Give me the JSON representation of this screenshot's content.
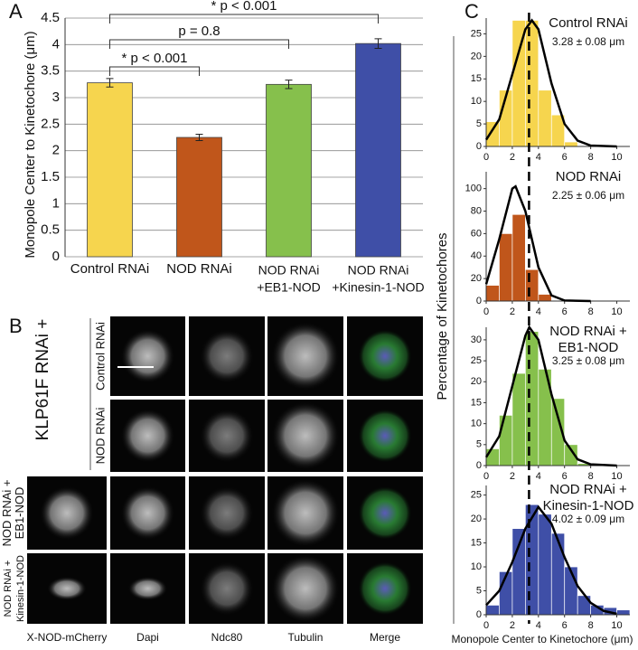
{
  "panel_labels": [
    "A",
    "B",
    "C"
  ],
  "chart_data": [
    {
      "type": "bar",
      "y_label": "Monopole Center to Kinetochore (μm)",
      "categories": [
        "Control RNAi",
        "NOD RNAi",
        "NOD RNAi\n+EB1-NOD",
        "NOD RNAi\n+Kinesin-1-NOD"
      ],
      "values": [
        3.28,
        2.25,
        3.25,
        4.02
      ],
      "errors": [
        0.08,
        0.06,
        0.08,
        0.09
      ],
      "colors": [
        "#f6d54e",
        "#c0561b",
        "#86c04c",
        "#3f4fa7"
      ],
      "ylim": [
        0,
        4.5
      ],
      "yticks": [
        0,
        0.5,
        1,
        1.5,
        2,
        2.5,
        3,
        3.5,
        4,
        4.5
      ],
      "grid": true,
      "annotations": [
        "* p < 0.001",
        "p = 0.8",
        "* p < 0.001"
      ]
    },
    {
      "type": "histogram",
      "title": "Control RNAi",
      "subtitle": "3.28 ± 0.08 μm",
      "color": "#f6d54e",
      "bins": [
        0,
        1,
        2,
        3,
        4,
        5,
        6,
        7,
        8,
        9,
        10,
        11
      ],
      "values": [
        5.5,
        12.5,
        28,
        28,
        12.5,
        7,
        1,
        0,
        0,
        0,
        0
      ],
      "xlim": [
        0,
        11
      ],
      "xticks": [
        0,
        2,
        4,
        6,
        8,
        10
      ],
      "ylim": [
        0,
        28.5
      ],
      "yticks": [
        0,
        5,
        10,
        15,
        20,
        25
      ],
      "fit": {
        "x": [
          0,
          1,
          2,
          3,
          3.5,
          4,
          5,
          6,
          7,
          8,
          10
        ],
        "values": [
          1.5,
          6,
          16,
          26,
          28,
          26,
          14,
          5,
          1.3,
          0.2,
          0
        ]
      }
    },
    {
      "type": "histogram",
      "title": "NOD RNAi",
      "subtitle": "2.25 ± 0.06 μm",
      "color": "#c0561b",
      "bins": [
        0,
        1,
        2,
        3,
        4,
        5,
        6,
        7,
        8,
        9,
        10,
        11
      ],
      "values": [
        14,
        60,
        77,
        28,
        6,
        0,
        0,
        0,
        0,
        0,
        0
      ],
      "xlim": [
        0,
        11
      ],
      "xticks": [
        0,
        2,
        4,
        6,
        8,
        10
      ],
      "ylim": [
        0,
        115
      ],
      "yticks": [
        0,
        20,
        40,
        60,
        80,
        100
      ],
      "fit": {
        "x": [
          0,
          1,
          2,
          2.25,
          3,
          4,
          5,
          6,
          8
        ],
        "values": [
          15,
          55,
          100,
          102,
          80,
          30,
          5,
          0.5,
          0
        ]
      }
    },
    {
      "type": "histogram",
      "title": "NOD RNAi +\nEB1-NOD",
      "subtitle": "3.25 ± 0.08 μm",
      "color": "#86c04c",
      "bins": [
        0,
        1,
        2,
        3,
        4,
        5,
        6,
        7,
        8,
        9,
        10,
        11
      ],
      "values": [
        4,
        12,
        22,
        32,
        23,
        16,
        5,
        0.5,
        0,
        0,
        0
      ],
      "xlim": [
        0,
        11
      ],
      "xticks": [
        0,
        2,
        4,
        6,
        8,
        10
      ],
      "ylim": [
        0,
        33
      ],
      "yticks": [
        0,
        5,
        10,
        15,
        20,
        25,
        30
      ],
      "fit": {
        "x": [
          0,
          1,
          2,
          3,
          3.3,
          4,
          5,
          6,
          7,
          8,
          10
        ],
        "values": [
          2,
          7,
          19,
          31,
          33,
          30,
          17,
          6,
          1.5,
          0.3,
          0
        ]
      }
    },
    {
      "type": "histogram",
      "title": "NOD RNAi +\nKinesin-1-NOD",
      "subtitle": "4.02 ± 0.09 μm",
      "color": "#3f4fa7",
      "bins": [
        0,
        1,
        2,
        3,
        4,
        5,
        6,
        7,
        8,
        9,
        10,
        11
      ],
      "values": [
        2,
        9,
        18,
        23,
        21,
        17,
        10,
        4,
        2,
        1.5,
        1
      ],
      "xlim": [
        0,
        11
      ],
      "xticks": [
        0,
        2,
        4,
        6,
        8,
        10
      ],
      "ylim": [
        0,
        27
      ],
      "yticks": [
        0,
        5,
        10,
        15,
        20,
        25
      ],
      "fit": {
        "x": [
          0,
          1,
          2,
          3,
          4,
          5,
          6,
          7,
          8,
          9,
          10
        ],
        "values": [
          2,
          5,
          11,
          18,
          22.5,
          19,
          12,
          6,
          2.5,
          0.8,
          0.2
        ]
      }
    }
  ],
  "panel_b": {
    "group_label": "KLP61F RNAi +",
    "rows": [
      "Control RNAi",
      "NOD RNAi",
      "NOD RNAi +\nEB1-NOD",
      "NOD RNAi +\nKinesin-1-NOD"
    ],
    "columns": [
      "X-NOD-mCherry",
      "Dapi",
      "Ndc80",
      "Tubulin",
      "Merge"
    ]
  },
  "panel_c": {
    "y_label": "Percentage of Kinetochores",
    "x_label": "Monopole Center to Kinetochore (μm)"
  }
}
